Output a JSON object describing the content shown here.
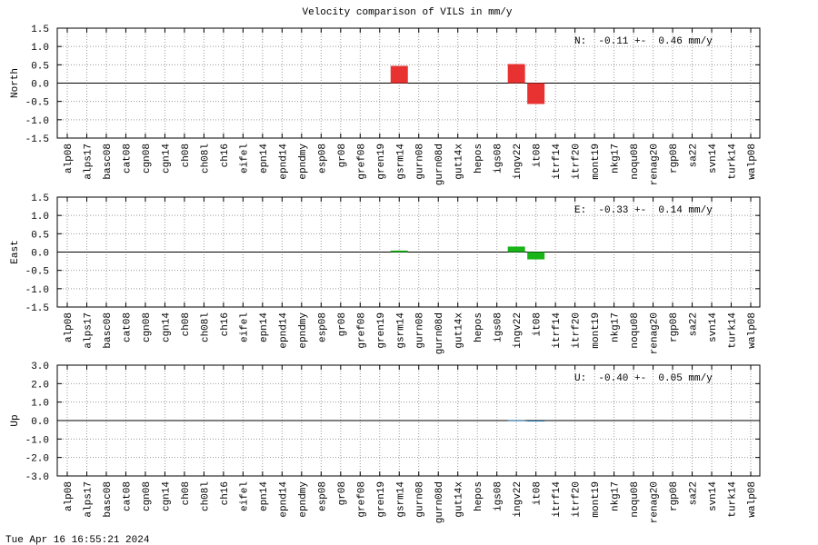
{
  "title": "Velocity comparison of VILS in mm/y",
  "timestamp": "Tue Apr 16 16:55:21 2024",
  "chart_data": [
    {
      "type": "bar",
      "ylabel": "North",
      "annotation": "N:  -0.11 +-  0.46 mm/y",
      "color": "#e83232",
      "grid": true,
      "categories": [
        "alp08",
        "alps17",
        "basc08",
        "cat08",
        "cgn08",
        "cgn14",
        "ch08",
        "ch08l",
        "ch16",
        "eifel",
        "epn14",
        "epnd14",
        "epndmy",
        "esp08",
        "gr08",
        "gref08",
        "gren19",
        "gsrm14",
        "gurn08",
        "gurn08d",
        "gut14x",
        "hepos",
        "igs08",
        "ingv22",
        "it08",
        "itrf14",
        "itrf20",
        "mont19",
        "nkg17",
        "noqu08",
        "renag20",
        "rgp08",
        "sa22",
        "svn14",
        "turk14",
        "walp08"
      ],
      "values": [
        null,
        null,
        null,
        null,
        null,
        null,
        null,
        null,
        null,
        null,
        null,
        null,
        null,
        null,
        null,
        null,
        null,
        0.47,
        null,
        null,
        null,
        null,
        null,
        0.52,
        -0.57,
        null,
        null,
        null,
        null,
        null,
        null,
        null,
        null,
        null,
        null,
        null
      ],
      "ylim": [
        -1.5,
        1.5
      ],
      "yticks": [
        {
          "value": 1.5,
          "label": "1.5"
        },
        {
          "value": 1,
          "label": "1.0"
        },
        {
          "value": 0.5,
          "label": "0.5"
        },
        {
          "value": 0,
          "label": "0.0"
        },
        {
          "value": -0.5,
          "label": "-0.5"
        },
        {
          "value": -1,
          "label": "-1.0"
        },
        {
          "value": -1.5,
          "label": "-1.5"
        }
      ]
    },
    {
      "type": "bar",
      "ylabel": "East",
      "annotation": "E:  -0.33 +-  0.14 mm/y",
      "color": "#18b418",
      "grid": true,
      "categories": [
        "alp08",
        "alps17",
        "basc08",
        "cat08",
        "cgn08",
        "cgn14",
        "ch08",
        "ch08l",
        "ch16",
        "eifel",
        "epn14",
        "epnd14",
        "epndmy",
        "esp08",
        "gr08",
        "gref08",
        "gren19",
        "gsrm14",
        "gurn08",
        "gurn08d",
        "gut14x",
        "hepos",
        "igs08",
        "ingv22",
        "it08",
        "itrf14",
        "itrf20",
        "mont19",
        "nkg17",
        "noqu08",
        "renag20",
        "rgp08",
        "sa22",
        "svn14",
        "turk14",
        "walp08"
      ],
      "values": [
        null,
        null,
        null,
        null,
        null,
        null,
        null,
        null,
        null,
        null,
        null,
        null,
        null,
        null,
        null,
        null,
        null,
        0.04,
        null,
        null,
        null,
        null,
        null,
        0.15,
        -0.2,
        null,
        null,
        null,
        null,
        null,
        null,
        null,
        null,
        null,
        null,
        null
      ],
      "ylim": [
        -1.5,
        1.5
      ],
      "yticks": [
        {
          "value": 1.5,
          "label": "1.5"
        },
        {
          "value": 1,
          "label": "1.0"
        },
        {
          "value": 0.5,
          "label": "0.5"
        },
        {
          "value": 0,
          "label": "0.0"
        },
        {
          "value": -0.5,
          "label": "-0.5"
        },
        {
          "value": -1,
          "label": "-1.0"
        },
        {
          "value": -1.5,
          "label": "-1.5"
        }
      ]
    },
    {
      "type": "bar",
      "ylabel": "Up",
      "annotation": "U:  -0.40 +-  0.05 mm/y",
      "color": "#1464a0",
      "grid": true,
      "categories": [
        "alp08",
        "alps17",
        "basc08",
        "cat08",
        "cgn08",
        "cgn14",
        "ch08",
        "ch08l",
        "ch16",
        "eifel",
        "epn14",
        "epnd14",
        "epndmy",
        "esp08",
        "gr08",
        "gref08",
        "gren19",
        "gsrm14",
        "gurn08",
        "gurn08d",
        "gut14x",
        "hepos",
        "igs08",
        "ingv22",
        "it08",
        "itrf14",
        "itrf20",
        "mont19",
        "nkg17",
        "noqu08",
        "renag20",
        "rgp08",
        "sa22",
        "svn14",
        "turk14",
        "walp08"
      ],
      "values": [
        null,
        null,
        null,
        null,
        null,
        null,
        null,
        null,
        null,
        null,
        null,
        null,
        null,
        null,
        null,
        null,
        null,
        null,
        null,
        null,
        null,
        null,
        null,
        0.02,
        -0.03,
        null,
        null,
        null,
        null,
        null,
        null,
        null,
        null,
        null,
        null,
        null
      ],
      "ylim": [
        -3,
        3
      ],
      "yticks": [
        {
          "value": 3,
          "label": "3.0"
        },
        {
          "value": 2,
          "label": "2.0"
        },
        {
          "value": 1,
          "label": "1.0"
        },
        {
          "value": 0,
          "label": "0.0"
        },
        {
          "value": -1,
          "label": "-1.0"
        },
        {
          "value": -2,
          "label": "-2.0"
        },
        {
          "value": -3,
          "label": "-3.0"
        }
      ]
    }
  ]
}
